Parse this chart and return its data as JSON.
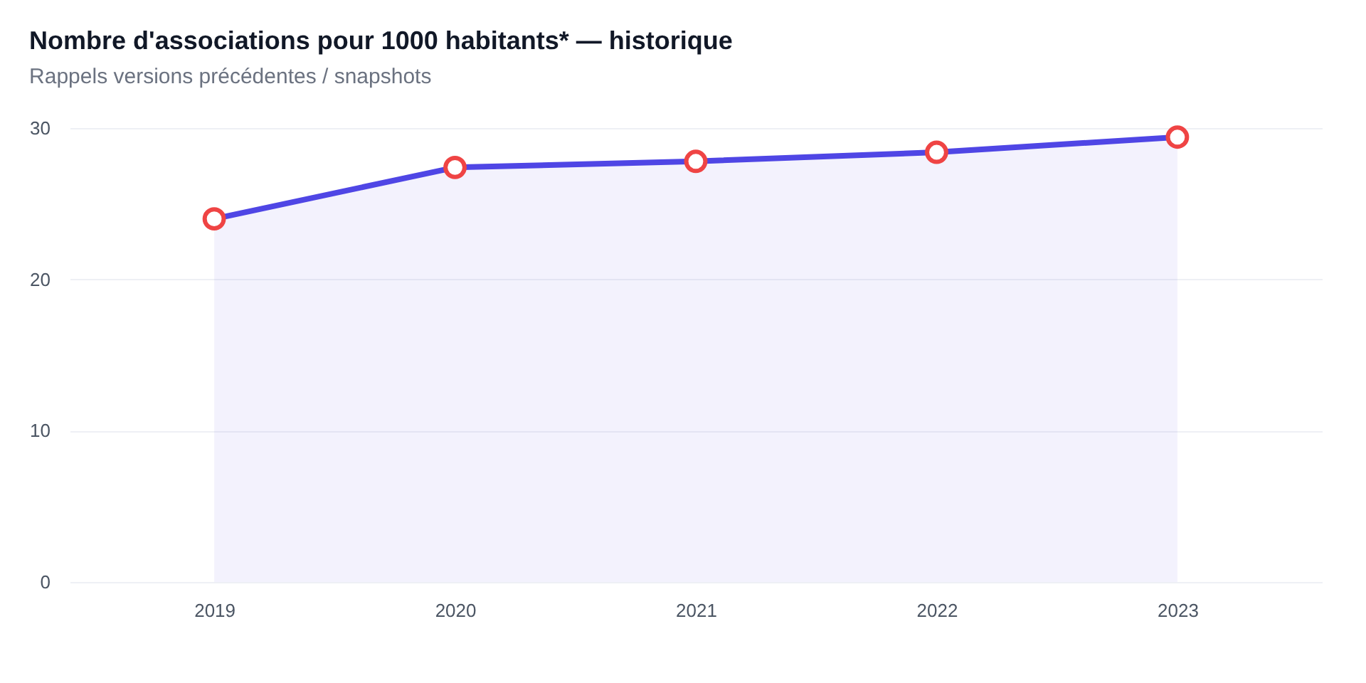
{
  "chart_data": {
    "type": "area",
    "title": "Nombre d'associations pour 1000 habitants* — historique",
    "subtitle": "Rappels versions précédentes / snapshots",
    "categories": [
      "2019",
      "2020",
      "2021",
      "2022",
      "2023"
    ],
    "series": [
      {
        "color": "#4f46e5",
        "values": [
          24.0,
          27.4,
          27.8,
          28.4,
          29.4
        ]
      }
    ],
    "colors": [
      "#ef4444",
      "#ef4444",
      "#ef4444",
      "#ef4444",
      "#ef4444"
    ],
    "ylim": [
      0,
      30
    ],
    "yticks": [
      0,
      10,
      20,
      30
    ],
    "grid": "y",
    "marker": "circle",
    "line_style": "solid"
  }
}
